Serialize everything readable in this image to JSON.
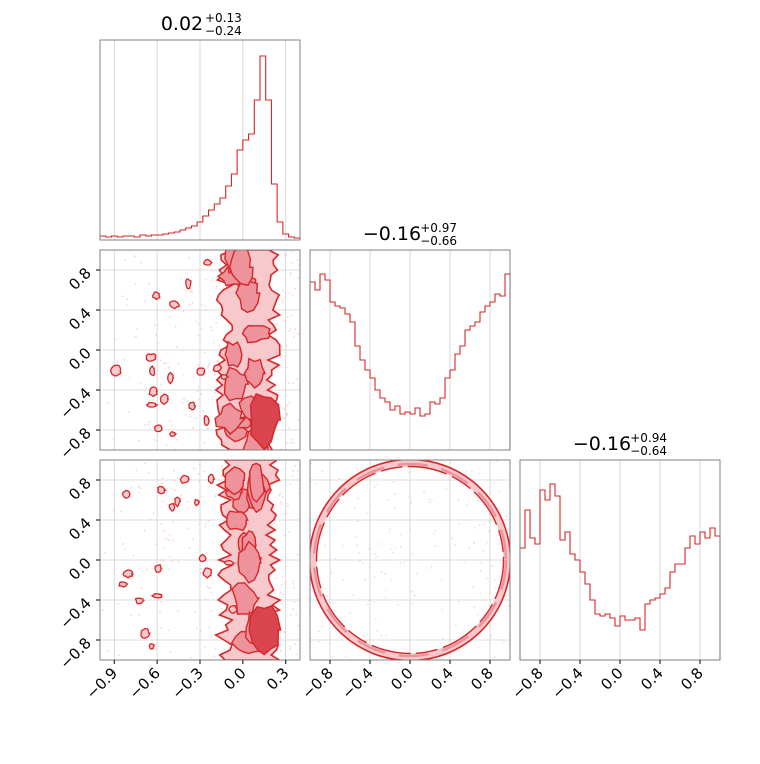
{
  "figure": {
    "type": "corner-plot",
    "accent_color": "#d62728",
    "panel_border_color": "#808080",
    "grid": true
  },
  "chart_data": [
    {
      "panel": "hist-0",
      "type": "histogram",
      "title": {
        "value": "0.02",
        "plus": "+0.13",
        "minus": "−0.24"
      },
      "x_range": [
        -1.0,
        0.4
      ],
      "x_ticks": [
        -0.9,
        -0.6,
        -0.3,
        0.0,
        0.3
      ],
      "bins": [
        [
          -1.0,
          0.02
        ],
        [
          -0.96,
          0.015
        ],
        [
          -0.92,
          0.02
        ],
        [
          -0.88,
          0.015
        ],
        [
          -0.84,
          0.02
        ],
        [
          -0.8,
          0.02
        ],
        [
          -0.76,
          0.015
        ],
        [
          -0.72,
          0.025
        ],
        [
          -0.68,
          0.02
        ],
        [
          -0.64,
          0.025
        ],
        [
          -0.6,
          0.025
        ],
        [
          -0.56,
          0.03
        ],
        [
          -0.52,
          0.035
        ],
        [
          -0.48,
          0.04
        ],
        [
          -0.44,
          0.05
        ],
        [
          -0.4,
          0.06
        ],
        [
          -0.36,
          0.07
        ],
        [
          -0.32,
          0.09
        ],
        [
          -0.28,
          0.12
        ],
        [
          -0.24,
          0.15
        ],
        [
          -0.2,
          0.18
        ],
        [
          -0.16,
          0.21
        ],
        [
          -0.12,
          0.27
        ],
        [
          -0.08,
          0.33
        ],
        [
          -0.04,
          0.45
        ],
        [
          0.0,
          0.5
        ],
        [
          0.04,
          0.53
        ],
        [
          0.08,
          0.7
        ],
        [
          0.12,
          0.92
        ],
        [
          0.16,
          0.7
        ],
        [
          0.2,
          0.28
        ],
        [
          0.24,
          0.09
        ],
        [
          0.28,
          0.03
        ],
        [
          0.32,
          0.015
        ],
        [
          0.36,
          0.01
        ]
      ]
    },
    {
      "panel": "hist-1",
      "type": "histogram",
      "title": {
        "value": "−0.16",
        "plus": "+0.97",
        "minus": "−0.66"
      },
      "x_range": [
        -1.0,
        1.0
      ],
      "x_ticks": [
        -0.8,
        -0.4,
        0.0,
        0.4,
        0.8
      ],
      "bins": [
        [
          -1.0,
          0.84
        ],
        [
          -0.95,
          0.8
        ],
        [
          -0.9,
          0.88
        ],
        [
          -0.85,
          0.85
        ],
        [
          -0.8,
          0.74
        ],
        [
          -0.75,
          0.72
        ],
        [
          -0.7,
          0.71
        ],
        [
          -0.65,
          0.68
        ],
        [
          -0.6,
          0.64
        ],
        [
          -0.55,
          0.52
        ],
        [
          -0.5,
          0.45
        ],
        [
          -0.45,
          0.4
        ],
        [
          -0.4,
          0.36
        ],
        [
          -0.35,
          0.3
        ],
        [
          -0.3,
          0.26
        ],
        [
          -0.25,
          0.24
        ],
        [
          -0.2,
          0.2
        ],
        [
          -0.15,
          0.22
        ],
        [
          -0.1,
          0.18
        ],
        [
          -0.05,
          0.19
        ],
        [
          0.0,
          0.18
        ],
        [
          0.05,
          0.21
        ],
        [
          0.1,
          0.17
        ],
        [
          0.15,
          0.18
        ],
        [
          0.2,
          0.24
        ],
        [
          0.25,
          0.23
        ],
        [
          0.3,
          0.26
        ],
        [
          0.35,
          0.36
        ],
        [
          0.4,
          0.4
        ],
        [
          0.45,
          0.48
        ],
        [
          0.5,
          0.52
        ],
        [
          0.55,
          0.6
        ],
        [
          0.6,
          0.62
        ],
        [
          0.65,
          0.64
        ],
        [
          0.7,
          0.69
        ],
        [
          0.75,
          0.72
        ],
        [
          0.8,
          0.74
        ],
        [
          0.85,
          0.78
        ],
        [
          0.9,
          0.77
        ],
        [
          0.95,
          0.88
        ]
      ]
    },
    {
      "panel": "hist-2",
      "type": "histogram",
      "title": {
        "value": "−0.16",
        "plus": "+0.94",
        "minus": "−0.64"
      },
      "x_range": [
        -1.0,
        1.0
      ],
      "x_ticks": [
        -0.8,
        -0.4,
        0.0,
        0.4,
        0.8
      ],
      "bins": [
        [
          -1.0,
          0.56
        ],
        [
          -0.95,
          0.75
        ],
        [
          -0.9,
          0.61
        ],
        [
          -0.85,
          0.58
        ],
        [
          -0.8,
          0.85
        ],
        [
          -0.75,
          0.8
        ],
        [
          -0.7,
          0.88
        ],
        [
          -0.65,
          0.82
        ],
        [
          -0.6,
          0.6
        ],
        [
          -0.55,
          0.64
        ],
        [
          -0.5,
          0.53
        ],
        [
          -0.45,
          0.5
        ],
        [
          -0.4,
          0.44
        ],
        [
          -0.35,
          0.38
        ],
        [
          -0.3,
          0.3
        ],
        [
          -0.25,
          0.23
        ],
        [
          -0.2,
          0.22
        ],
        [
          -0.15,
          0.23
        ],
        [
          -0.1,
          0.21
        ],
        [
          -0.05,
          0.17
        ],
        [
          0.0,
          0.22
        ],
        [
          0.05,
          0.2
        ],
        [
          0.1,
          0.2
        ],
        [
          0.15,
          0.21
        ],
        [
          0.2,
          0.15
        ],
        [
          0.25,
          0.28
        ],
        [
          0.3,
          0.3
        ],
        [
          0.35,
          0.31
        ],
        [
          0.4,
          0.33
        ],
        [
          0.45,
          0.36
        ],
        [
          0.5,
          0.44
        ],
        [
          0.55,
          0.48
        ],
        [
          0.6,
          0.48
        ],
        [
          0.65,
          0.56
        ],
        [
          0.7,
          0.62
        ],
        [
          0.75,
          0.58
        ],
        [
          0.8,
          0.64
        ],
        [
          0.85,
          0.61
        ],
        [
          0.9,
          0.66
        ],
        [
          0.95,
          0.62
        ]
      ]
    },
    {
      "panel": "contour-1-0",
      "type": "contour-2d",
      "x_range": [
        -1.0,
        0.4
      ],
      "y_range": [
        -1.0,
        1.0
      ],
      "y_ticks": [
        -0.8,
        -0.4,
        0.0,
        0.4,
        0.8
      ],
      "shape": "vertical-band",
      "band_center": 0.05,
      "band_half_width": 0.18
    },
    {
      "panel": "contour-2-0",
      "type": "contour-2d",
      "x_range": [
        -1.0,
        0.4
      ],
      "y_range": [
        -1.0,
        1.0
      ],
      "x_ticks": [
        -0.9,
        -0.6,
        -0.3,
        0.0,
        0.3
      ],
      "y_ticks": [
        -0.8,
        -0.4,
        0.0,
        0.4,
        0.8
      ],
      "shape": "vertical-band",
      "band_center": 0.05,
      "band_half_width": 0.18
    },
    {
      "panel": "contour-2-1",
      "type": "contour-2d",
      "x_range": [
        -1.0,
        1.0
      ],
      "y_range": [
        -1.0,
        1.0
      ],
      "x_ticks": [
        -0.8,
        -0.4,
        0.0,
        0.4,
        0.8
      ],
      "shape": "ring",
      "ring_radius": 0.97
    }
  ]
}
